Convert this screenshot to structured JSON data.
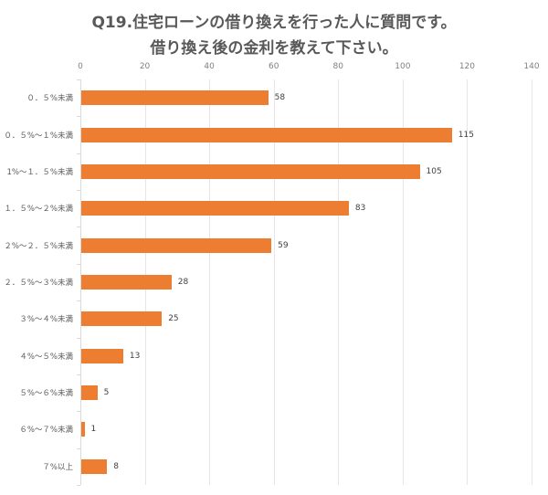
{
  "chart_data": {
    "type": "bar",
    "orientation": "horizontal",
    "title": "Q19.住宅ローンの借り換えを行った人に質問です。",
    "subtitle": "借り換え後の金利を教えて下さい。",
    "xlabel": "",
    "ylabel": "",
    "xlim": [
      0,
      140
    ],
    "xticks": [
      "0",
      "20",
      "40",
      "60",
      "80",
      "100",
      "120",
      "140"
    ],
    "grid": true,
    "legend": null,
    "bar_color": "#ed7d31",
    "categories": [
      "０．５%未満",
      "０．５%～１%未満",
      "1%～１．５%未満",
      "１．５%～２%未満",
      "２%～２．５%未満",
      "２．５%～３%未満",
      "３%～４%未満",
      "４%～５%未満",
      "５%～６%未満",
      "６%～７%未満",
      "７%以上"
    ],
    "values": [
      58,
      115,
      105,
      83,
      59,
      28,
      25,
      13,
      5,
      1,
      8
    ]
  }
}
